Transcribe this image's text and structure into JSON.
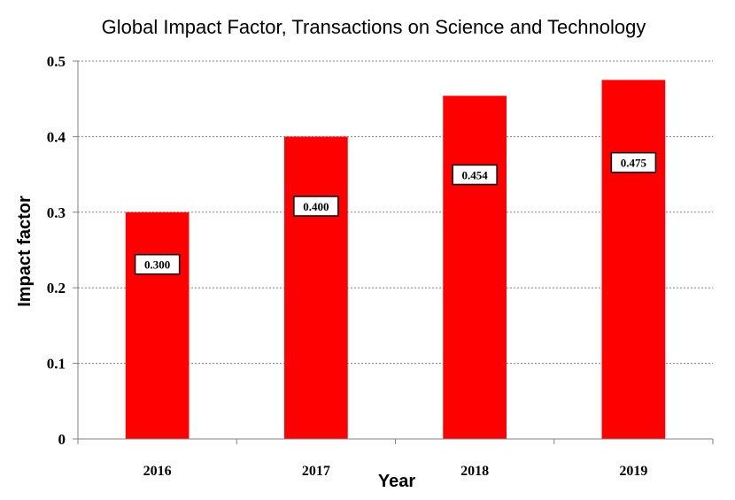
{
  "chart_data": {
    "type": "bar",
    "title": "Global Impact Factor, Transactions on Science and Technology",
    "xlabel": "Year",
    "ylabel": "Impact factor",
    "categories": [
      "2016",
      "2017",
      "2018",
      "2019"
    ],
    "values": [
      0.3,
      0.4,
      0.454,
      0.475
    ],
    "data_labels": [
      "0.300",
      "0.400",
      "0.454",
      "0.475"
    ],
    "ylim": [
      0,
      0.5
    ],
    "yticks": [
      "0",
      "0.1",
      "0.2",
      "0.3",
      "0.4",
      "0.5"
    ],
    "grid": true,
    "legend": "none",
    "bar_color": "#ff0000"
  }
}
